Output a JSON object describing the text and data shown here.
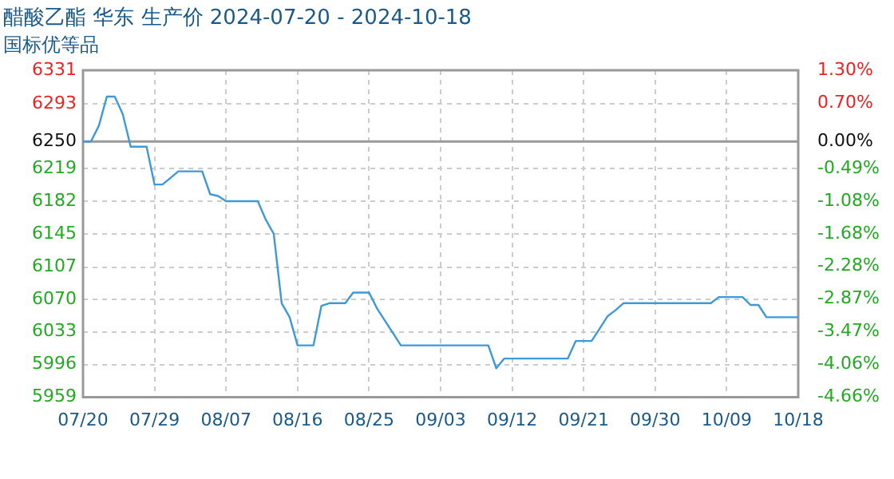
{
  "chart_data": {
    "type": "line",
    "title": "醋酸乙酯 华东 生产价 2024-07-20 - 2024-10-18",
    "subtitle": "国标优等品",
    "x": [
      "2024-07-20",
      "2024-07-21",
      "2024-07-22",
      "2024-07-23",
      "2024-07-24",
      "2024-07-25",
      "2024-07-26",
      "2024-07-28",
      "2024-07-29",
      "2024-07-30",
      "2024-08-01",
      "2024-08-04",
      "2024-08-05",
      "2024-08-06",
      "2024-08-07",
      "2024-08-11",
      "2024-08-12",
      "2024-08-13",
      "2024-08-14",
      "2024-08-15",
      "2024-08-16",
      "2024-08-18",
      "2024-08-19",
      "2024-08-20",
      "2024-08-22",
      "2024-08-23",
      "2024-08-25",
      "2024-08-26",
      "2024-08-29",
      "2024-09-09",
      "2024-09-10",
      "2024-09-11",
      "2024-09-19",
      "2024-09-20",
      "2024-09-22",
      "2024-09-24",
      "2024-09-25",
      "2024-09-26",
      "2024-10-07",
      "2024-10-08",
      "2024-10-11",
      "2024-10-12",
      "2024-10-13",
      "2024-10-14",
      "2024-10-18"
    ],
    "series": [
      {
        "color": "#3d99d9",
        "values": [
          6250,
          6250,
          6268,
          6301,
          6301,
          6281,
          6244,
          6244,
          6201,
          6201,
          6216,
          6216,
          6190,
          6188,
          6182,
          6182,
          6161,
          6145,
          6066,
          6050,
          6018,
          6018,
          6063,
          6066,
          6066,
          6078,
          6078,
          6060,
          6018,
          6018,
          5992,
          6003,
          6003,
          6023,
          6023,
          6051,
          6058,
          6066,
          6066,
          6073,
          6073,
          6064,
          6064,
          6050,
          6050
        ]
      }
    ],
    "xlim": [
      "2024-07-20",
      "2024-10-18"
    ],
    "xticks": [
      {
        "value": "2024-07-20",
        "label": "07/20"
      },
      {
        "value": "2024-07-29",
        "label": "07/29"
      },
      {
        "value": "2024-08-07",
        "label": "08/07"
      },
      {
        "value": "2024-08-16",
        "label": "08/16"
      },
      {
        "value": "2024-08-25",
        "label": "08/25"
      },
      {
        "value": "2024-09-03",
        "label": "09/03"
      },
      {
        "value": "2024-09-12",
        "label": "09/12"
      },
      {
        "value": "2024-09-21",
        "label": "09/21"
      },
      {
        "value": "2024-09-30",
        "label": "09/30"
      },
      {
        "value": "2024-10-09",
        "label": "10/09"
      },
      {
        "value": "2024-10-18",
        "label": "10/18"
      }
    ],
    "ylim": [
      5959,
      6331
    ],
    "yticks": [
      5959,
      {
        "value": 5996.2,
        "label": "5996"
      },
      {
        "value": 6033.4,
        "label": "6033"
      },
      6070,
      6107,
      6145,
      {
        "value": 6182.2,
        "label": "6182"
      },
      {
        "value": 6219.4,
        "label": "6219"
      },
      6250,
      6293,
      6331
    ],
    "y2lim": [
      -4.656,
      1.296
    ],
    "y2ticks": [
      {
        "value": -4.656,
        "label": "-4.66%"
      },
      {
        "value": -4.0608,
        "label": "-4.06%"
      },
      {
        "value": -3.4656,
        "label": "-3.47%"
      },
      {
        "value": -2.8704,
        "label": "-2.87%"
      },
      {
        "value": -2.2752,
        "label": "-2.28%"
      },
      {
        "value": -1.68,
        "label": "-1.68%"
      },
      {
        "value": -1.0848,
        "label": "-1.08%"
      },
      {
        "value": -0.4896,
        "label": "-0.49%"
      },
      {
        "value": 0,
        "label": "0.00%"
      },
      {
        "value": 0.7008,
        "label": "0.70%"
      },
      {
        "value": 1.296,
        "label": "1.30%"
      }
    ],
    "ref_lines": [
      {
        "axis": "y",
        "value": 6250,
        "color": "#999999"
      }
    ],
    "grid": true,
    "legend": false,
    "marker": "none",
    "line_style": "solid"
  }
}
